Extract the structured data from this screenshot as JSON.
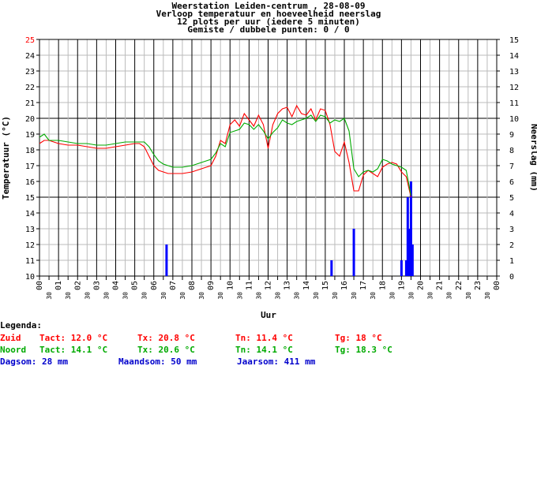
{
  "chart_data": {
    "type": "line",
    "title_lines": [
      "Weerstation Leiden-centrum , 28-08-09",
      "Verloop temperatuur en hoeveelheid neerslag",
      "12 plots per uur (iedere 5 minuten)",
      "Gemiste / dubbele punten: 0 / 0"
    ],
    "xlabel": "Uur",
    "ylabel_left": "Temperatuur (°C)",
    "ylabel_right": "Neerslag (mm)",
    "ylim_left": [
      10,
      25
    ],
    "ylim_right": [
      0,
      15
    ],
    "xlim": [
      0,
      24
    ],
    "hour_ticks": [
      "00",
      "01",
      "02",
      "03",
      "04",
      "05",
      "06",
      "07",
      "08",
      "09",
      "10",
      "11",
      "12",
      "13",
      "14",
      "15",
      "16",
      "17",
      "18",
      "19",
      "20",
      "21",
      "22",
      "23",
      "00"
    ],
    "half_tick_label": "30",
    "colors": {
      "zuid": "#ff0000",
      "noord": "#00aa00",
      "rain": "#0000ff"
    },
    "series": [
      {
        "name": "Zuid",
        "color": "#ff0000",
        "x": [
          0,
          0.25,
          0.5,
          0.75,
          1,
          1.5,
          2,
          2.5,
          3,
          3.5,
          4,
          4.5,
          5,
          5.25,
          5.5,
          5.75,
          6,
          6.25,
          6.5,
          6.75,
          7,
          7.5,
          8,
          8.25,
          8.5,
          8.75,
          9,
          9.25,
          9.5,
          9.75,
          10,
          10.25,
          10.5,
          10.75,
          11,
          11.25,
          11.5,
          11.75,
          12,
          12.25,
          12.5,
          12.75,
          13,
          13.25,
          13.5,
          13.75,
          14,
          14.25,
          14.5,
          14.75,
          15,
          15.25,
          15.5,
          15.75,
          16,
          16.25,
          16.5,
          16.75,
          17,
          17.25,
          17.5,
          17.75,
          18,
          18.25,
          18.5,
          18.75,
          19,
          19.25,
          19.5
        ],
        "y": [
          18.4,
          18.6,
          18.6,
          18.5,
          18.4,
          18.3,
          18.3,
          18.2,
          18.1,
          18.1,
          18.2,
          18.3,
          18.4,
          18.4,
          18.2,
          17.6,
          17.0,
          16.7,
          16.6,
          16.5,
          16.5,
          16.5,
          16.6,
          16.7,
          16.8,
          16.9,
          17.0,
          17.6,
          18.6,
          18.4,
          19.6,
          19.9,
          19.5,
          20.3,
          19.9,
          19.5,
          20.2,
          19.6,
          18.1,
          19.6,
          20.3,
          20.6,
          20.7,
          20.1,
          20.8,
          20.3,
          20.2,
          20.6,
          19.9,
          20.6,
          20.5,
          19.6,
          17.9,
          17.6,
          18.5,
          17.2,
          15.4,
          15.4,
          16.4,
          16.7,
          16.5,
          16.3,
          16.9,
          17.1,
          17.2,
          17.1,
          16.6,
          16.3,
          15.0
        ]
      },
      {
        "name": "Noord",
        "color": "#00aa00",
        "x": [
          0,
          0.25,
          0.5,
          0.75,
          1,
          1.5,
          2,
          2.5,
          3,
          3.5,
          4,
          4.5,
          5,
          5.25,
          5.5,
          5.75,
          6,
          6.25,
          6.5,
          6.75,
          7,
          7.5,
          8,
          8.25,
          8.5,
          8.75,
          9,
          9.25,
          9.5,
          9.75,
          10,
          10.25,
          10.5,
          10.75,
          11,
          11.25,
          11.5,
          11.75,
          12,
          12.25,
          12.5,
          12.75,
          13,
          13.25,
          13.5,
          13.75,
          14,
          14.25,
          14.5,
          14.75,
          15,
          15.25,
          15.5,
          15.75,
          16,
          16.25,
          16.5,
          16.75,
          17,
          17.25,
          17.5,
          17.75,
          18,
          18.25,
          18.5,
          18.75,
          19,
          19.25,
          19.5
        ],
        "y": [
          18.8,
          19.0,
          18.6,
          18.6,
          18.6,
          18.5,
          18.4,
          18.4,
          18.3,
          18.3,
          18.4,
          18.5,
          18.5,
          18.5,
          18.5,
          18.2,
          17.7,
          17.3,
          17.1,
          17.0,
          16.9,
          16.9,
          17.0,
          17.1,
          17.2,
          17.3,
          17.4,
          17.8,
          18.4,
          18.2,
          19.1,
          19.2,
          19.3,
          19.7,
          19.6,
          19.3,
          19.6,
          19.2,
          18.7,
          19.1,
          19.4,
          19.9,
          19.7,
          19.6,
          19.8,
          19.9,
          20.0,
          20.2,
          19.8,
          20.2,
          20.1,
          19.7,
          19.9,
          19.8,
          20.0,
          19.2,
          16.8,
          16.3,
          16.6,
          16.7,
          16.6,
          16.8,
          17.4,
          17.3,
          17.1,
          17.0,
          16.9,
          16.7,
          15.1
        ]
      }
    ],
    "rain_bars": [
      {
        "x": 6.67,
        "mm": 2
      },
      {
        "x": 15.33,
        "mm": 1
      },
      {
        "x": 16.5,
        "mm": 3
      },
      {
        "x": 19.0,
        "mm": 1
      },
      {
        "x": 19.25,
        "mm": 1
      },
      {
        "x": 19.33,
        "mm": 5
      },
      {
        "x": 19.42,
        "mm": 3
      },
      {
        "x": 19.5,
        "mm": 6
      },
      {
        "x": 19.58,
        "mm": 2
      }
    ]
  },
  "legend": {
    "heading": "Legenda:",
    "zuid": {
      "name": "Zuid",
      "tact": "Tact: 12.0 °C",
      "tx": "Tx: 20.8 °C",
      "tn": "Tn: 11.4 °C",
      "tg": "Tg: 18 °C"
    },
    "noord": {
      "name": "Noord",
      "tact": "Tact: 14.1 °C",
      "tx": "Tx: 20.6 °C",
      "tn": "Tn: 14.1 °C",
      "tg": "Tg: 18.3 °C"
    },
    "rain": {
      "dag": "Dagsom: 28 mm",
      "maand": "Maandsom: 50 mm",
      "jaar": "Jaarsom: 411 mm"
    }
  }
}
